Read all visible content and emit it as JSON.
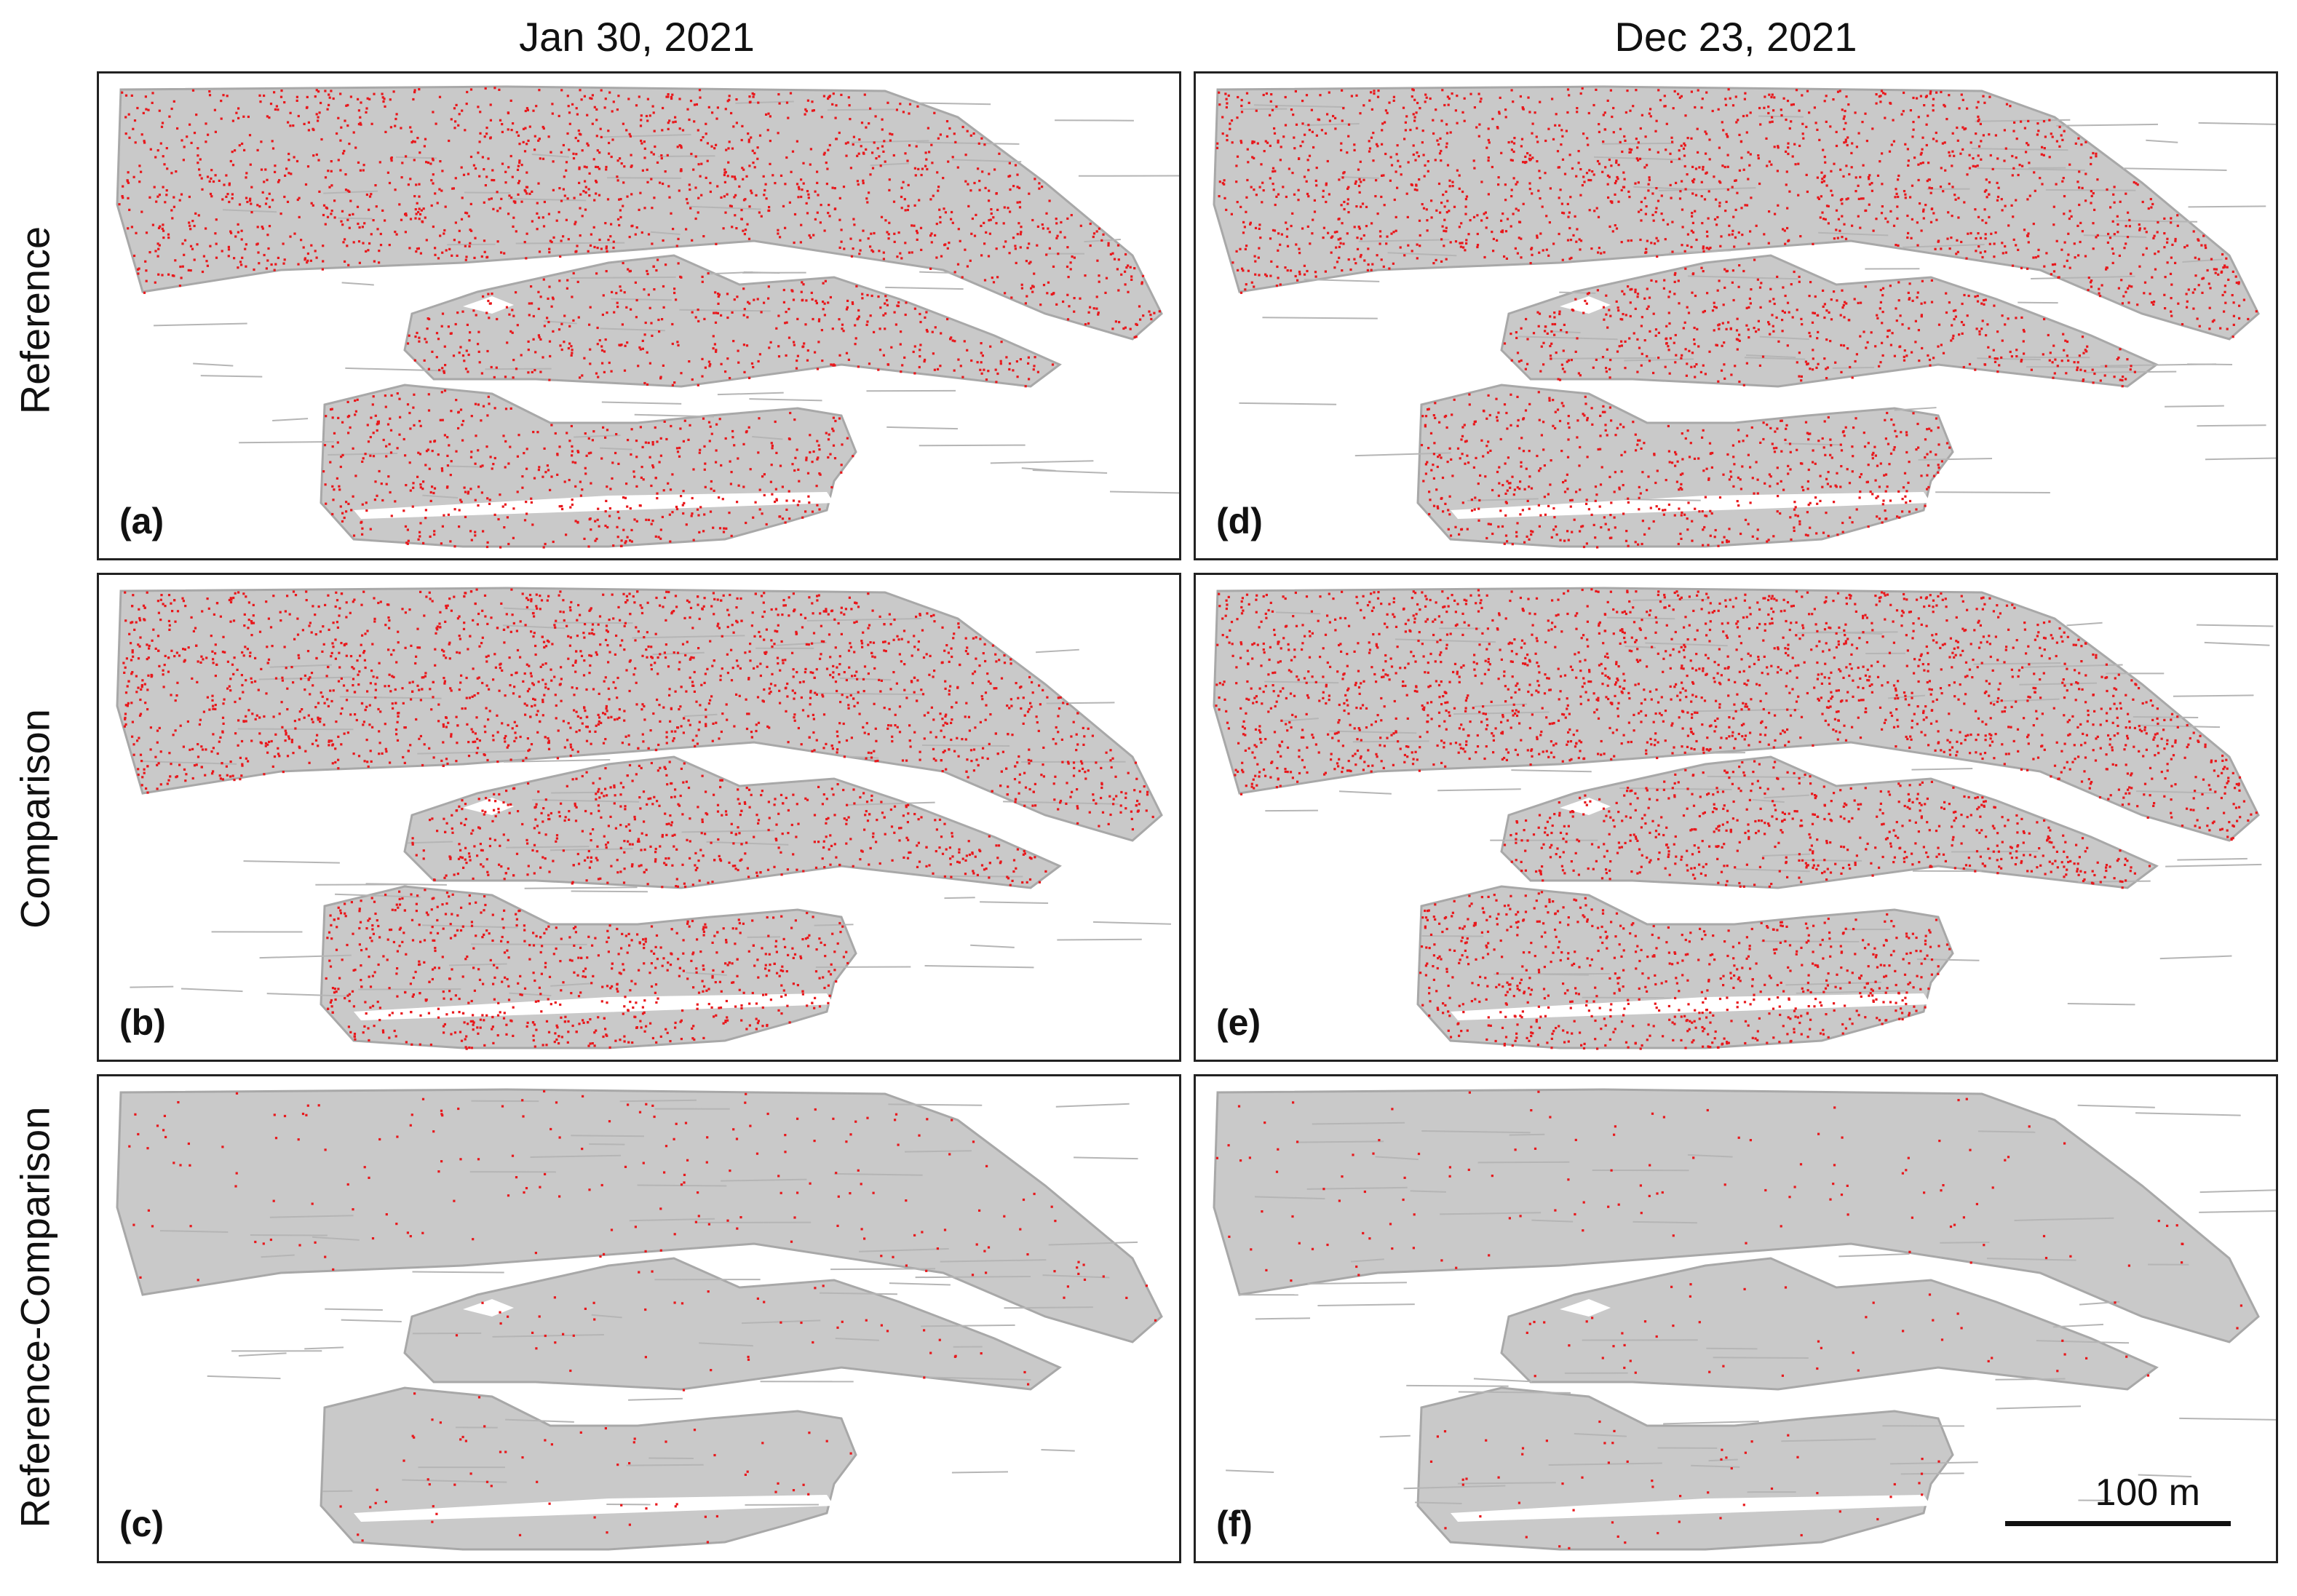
{
  "columns": [
    {
      "title": "Jan 30, 2021"
    },
    {
      "title": "Dec 23, 2021"
    }
  ],
  "rows": [
    {
      "title": "Reference"
    },
    {
      "title": "Comparison"
    },
    {
      "title": "Reference-Comparison"
    }
  ],
  "panels": [
    {
      "label": "(a)",
      "density": 1.0
    },
    {
      "label": "(b)",
      "density": 1.25
    },
    {
      "label": "(c)",
      "density": 0.12
    },
    {
      "label": "(d)",
      "density": 1.1
    },
    {
      "label": "(e)",
      "density": 1.3
    },
    {
      "label": "(f)",
      "density": 0.09
    }
  ],
  "scale_bar": {
    "label": "100 m"
  },
  "colors": {
    "points": "#e8181c",
    "rock": "#c9c9c9",
    "rock_dark": "#a8a8a8",
    "frame": "#222222"
  }
}
